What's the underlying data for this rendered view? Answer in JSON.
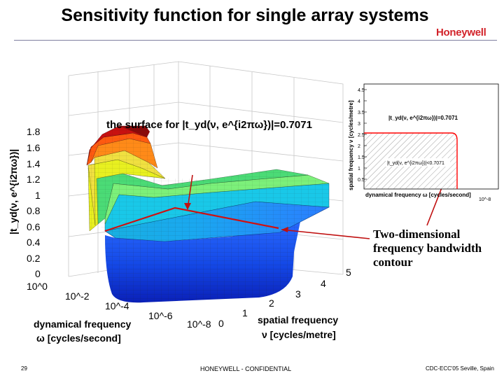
{
  "header": {
    "title": "Sensitivity function for single array systems",
    "logo": "Honeywell"
  },
  "footer": {
    "page_number": "29",
    "confidential": "HONEYWELL - CONFIDENTIAL",
    "conference": "CDC-ECC'05 Seville, Spain"
  },
  "callout": {
    "lines": [
      "Two-dimensional",
      "frequency bandwidth",
      "contour"
    ]
  },
  "chart_data": [
    {
      "type": "surface",
      "annotation": "the surface for |t_yd(ν, e^{i2πω})|=0.7071",
      "zlabel": "|t_yd(ν, e^{i2πω})|",
      "z_ticks": [
        "1.8",
        "1.6",
        "1.4",
        "1.2",
        "1",
        "0.8",
        "0.6",
        "0.4",
        "0.2",
        "0"
      ],
      "x_ticks": [
        "10^0",
        "10^-2",
        "10^-4",
        "10^-6",
        "10^-8"
      ],
      "y_ticks": [
        "0",
        "1",
        "2",
        "3",
        "4",
        "5"
      ],
      "xlabel": {
        "line1": "dynamical frequency",
        "line2": "ω [cycles/second]"
      },
      "ylabel": {
        "line1": "spatial frequency",
        "line2": "ν [cycles/metre]"
      },
      "zlim": [
        0,
        1.8
      ],
      "ylim": [
        0,
        5
      ],
      "contour_level": 0.7071,
      "colormap": "jet"
    },
    {
      "type": "contour",
      "xlabel": "dynamical frequency ω [cycles/second]",
      "ylabel": "spatial frequency ν [cycles/metre]",
      "y_ticks": [
        "4.5",
        "4",
        "3.5",
        "3",
        "2.5",
        "2",
        "1.5",
        "1",
        "0.5"
      ],
      "x_label_end": "10^-8",
      "ylim": [
        0,
        4.5
      ],
      "labels": {
        "eq": "|t_yd(ν, e^{i2πω})|=0.7071",
        "lt": "|t_yd(ν, e^{i2πω})|<0.7071"
      },
      "contour_color": "#ff0000"
    }
  ]
}
